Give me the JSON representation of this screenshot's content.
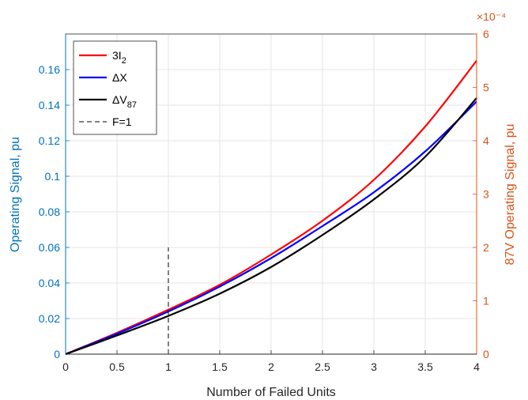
{
  "chart_data": {
    "type": "line",
    "xlabel": "Number of Failed Units",
    "ylabel_left": "Operating Signal, pu",
    "ylabel_right": "87V Operating Signal, pu",
    "xlim": [
      0,
      4
    ],
    "ylim_left": [
      0,
      0.18
    ],
    "ylim_right": [
      0,
      6
    ],
    "right_exponent": "×10⁻⁴",
    "x_ticks": [
      "0",
      "0.5",
      "1",
      "1.5",
      "2",
      "2.5",
      "3",
      "3.5",
      "4"
    ],
    "y_left_ticks": [
      "0",
      "0.02",
      "0.04",
      "0.06",
      "0.08",
      "0.1",
      "0.12",
      "0.14",
      "0.16"
    ],
    "y_right_ticks": [
      "0",
      "1",
      "2",
      "3",
      "4",
      "5",
      "6"
    ],
    "grid": true,
    "legend_position": "top-left",
    "colors": {
      "left_axis": "#0072BD",
      "right_axis": "#D95319",
      "grid": "#e6e6e6"
    },
    "series": [
      {
        "name": "3I2",
        "legend_main": "3I",
        "legend_sub": "2",
        "color": "#ff0000",
        "axis": "left",
        "style": "solid",
        "x": [
          0,
          0.5,
          1,
          1.5,
          2,
          2.5,
          3,
          3.5,
          4
        ],
        "values": [
          0,
          0.012,
          0.025,
          0.039,
          0.056,
          0.075,
          0.098,
          0.128,
          0.165
        ]
      },
      {
        "name": "ΔX",
        "legend_main": "ΔX",
        "legend_sub": "",
        "color": "#0000ff",
        "axis": "left",
        "style": "solid",
        "x": [
          0,
          0.5,
          1,
          1.5,
          2,
          2.5,
          3,
          3.5,
          4
        ],
        "values": [
          0,
          0.0115,
          0.024,
          0.038,
          0.054,
          0.072,
          0.091,
          0.114,
          0.142
        ]
      },
      {
        "name": "ΔV87",
        "legend_main": "ΔV",
        "legend_sub": "87",
        "color": "#000000",
        "axis": "left",
        "style": "solid",
        "x": [
          0,
          0.5,
          1,
          1.5,
          2,
          2.5,
          3,
          3.5,
          4
        ],
        "values": [
          0,
          0.0105,
          0.0215,
          0.034,
          0.049,
          0.067,
          0.087,
          0.111,
          0.144
        ]
      },
      {
        "name": "F=1",
        "legend_main": "F=1",
        "legend_sub": "",
        "color": "#000000",
        "axis": "left",
        "style": "dashed",
        "x": [
          1,
          1
        ],
        "values": [
          0,
          0.06
        ]
      }
    ]
  }
}
